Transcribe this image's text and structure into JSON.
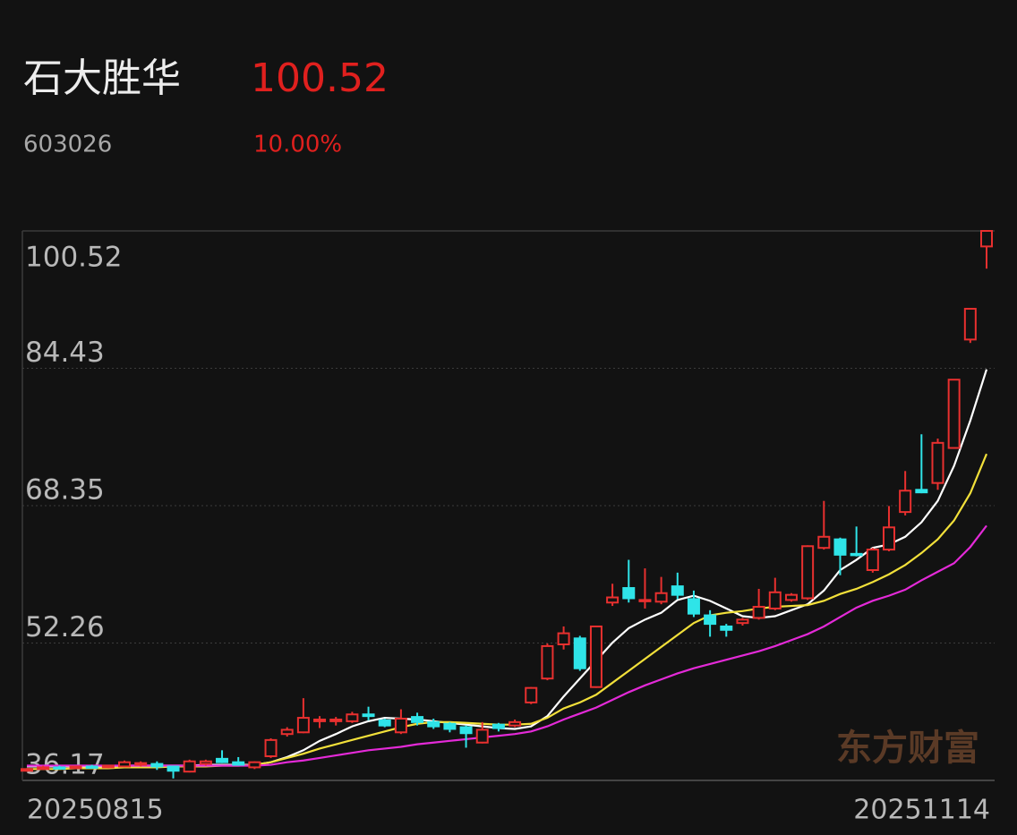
{
  "header": {
    "name": "石大胜华",
    "price": "100.52",
    "code": "603026",
    "change": "10.00%"
  },
  "chart_data": {
    "type": "candlestick",
    "categories": [
      "20250815",
      null,
      null,
      null,
      null,
      null,
      null,
      null,
      null,
      null,
      null,
      null,
      null,
      null,
      null,
      null,
      null,
      null,
      null,
      null,
      null,
      null,
      null,
      null,
      null,
      null,
      null,
      null,
      null,
      null,
      null,
      null,
      null,
      null,
      null,
      null,
      null,
      null,
      null,
      null,
      null,
      null,
      null,
      null,
      null,
      null,
      null,
      null,
      null,
      null,
      null,
      null,
      null,
      null,
      null,
      null,
      null,
      null,
      null,
      "20251114"
    ],
    "open": [
      37.3,
      37.5,
      37.7,
      37.6,
      37.8,
      37.7,
      37.8,
      38.0,
      38.1,
      37.8,
      37.2,
      38.1,
      38.7,
      38.3,
      37.7,
      39.0,
      41.6,
      41.8,
      43.1,
      43.1,
      43.1,
      43.9,
      43.2,
      41.8,
      43.6,
      43.0,
      42.8,
      42.4,
      40.6,
      42.7,
      42.6,
      45.3,
      48.1,
      52.1,
      52.8,
      47.1,
      57.0,
      58.7,
      57.2,
      57.1,
      58.9,
      57.4,
      55.5,
      54.2,
      54.6,
      55.2,
      56.3,
      57.3,
      57.5,
      63.4,
      64.4,
      62.7,
      60.8,
      63.2,
      67.6,
      70.2,
      71.0,
      75.1,
      87.8,
      98.7
    ],
    "high": [
      37.6,
      37.9,
      37.9,
      37.9,
      38.0,
      38.0,
      38.5,
      38.4,
      38.4,
      37.9,
      38.6,
      38.6,
      39.7,
      38.9,
      38.4,
      41.1,
      42.4,
      45.8,
      43.7,
      43.6,
      44.2,
      44.8,
      43.4,
      44.5,
      44.1,
      43.4,
      43.0,
      42.6,
      43.0,
      42.9,
      43.3,
      47.1,
      52.2,
      54.2,
      53.1,
      54.2,
      59.2,
      62.0,
      61.0,
      60.0,
      60.5,
      58.4,
      56.1,
      54.5,
      55.2,
      58.6,
      59.9,
      58.1,
      63.7,
      68.9,
      64.6,
      65.9,
      63.4,
      68.3,
      72.4,
      76.7,
      76.2,
      83.1,
      91.4,
      100.52
    ],
    "low": [
      37.2,
      37.4,
      37.5,
      37.5,
      37.6,
      37.6,
      37.7,
      37.8,
      37.4,
      36.4,
      37.1,
      37.9,
      38.2,
      37.9,
      37.5,
      38.8,
      41.3,
      41.7,
      42.3,
      42.6,
      42.9,
      43.2,
      42.4,
      41.6,
      42.6,
      42.2,
      41.8,
      40.0,
      40.5,
      41.9,
      42.4,
      45.1,
      47.9,
      51.5,
      49.0,
      47.0,
      56.6,
      57.0,
      56.3,
      56.8,
      57.4,
      55.3,
      53.0,
      53.0,
      54.3,
      55.0,
      56.1,
      57.1,
      57.3,
      63.2,
      60.2,
      62.4,
      60.5,
      63.0,
      67.2,
      69.8,
      70.2,
      75.0,
      87.4,
      96.1
    ],
    "close": [
      37.5,
      37.7,
      37.6,
      37.8,
      37.7,
      37.9,
      38.3,
      38.2,
      37.8,
      37.3,
      38.4,
      38.4,
      38.3,
      38.0,
      38.3,
      40.9,
      42.1,
      43.5,
      43.3,
      43.3,
      43.9,
      43.7,
      42.6,
      43.4,
      43.0,
      42.5,
      42.2,
      41.7,
      42.1,
      42.3,
      43.0,
      47.0,
      51.9,
      53.4,
      49.3,
      54.2,
      57.6,
      57.5,
      57.3,
      58.1,
      57.9,
      55.7,
      54.5,
      53.8,
      55.0,
      56.5,
      58.2,
      57.9,
      63.6,
      64.7,
      62.6,
      62.6,
      63.2,
      65.8,
      70.1,
      69.9,
      75.7,
      83.1,
      91.4,
      100.52
    ],
    "up_color": "#e8302f",
    "down_color": "#2fe4e8",
    "series": [
      {
        "color": "#ffffff",
        "values": [
          37.8,
          37.8,
          37.8,
          37.8,
          37.8,
          37.8,
          37.9,
          37.9,
          37.9,
          37.9,
          37.9,
          38.0,
          38.0,
          38.0,
          38.0,
          38.3,
          38.9,
          39.7,
          40.8,
          41.6,
          42.5,
          43.1,
          43.5,
          43.4,
          43.3,
          43.1,
          42.9,
          42.7,
          42.5,
          42.3,
          42.2,
          42.5,
          43.7,
          46.0,
          48.1,
          50.2,
          52.3,
          54.0,
          55.0,
          55.8,
          57.3,
          57.8,
          57.2,
          56.3,
          55.4,
          55.2,
          55.4,
          56.1,
          56.8,
          58.4,
          60.8,
          62.0,
          63.4,
          63.8,
          64.7,
          66.4,
          68.9,
          73.0,
          78.3,
          84.3
        ]
      },
      {
        "color": "#f2e03a",
        "values": [
          37.5,
          37.5,
          37.5,
          37.6,
          37.6,
          37.6,
          37.7,
          37.7,
          37.7,
          37.8,
          37.8,
          37.8,
          37.9,
          37.9,
          38.0,
          38.3,
          38.8,
          39.3,
          39.9,
          40.4,
          40.9,
          41.4,
          41.9,
          42.4,
          42.8,
          43.0,
          43.0,
          42.9,
          42.8,
          42.7,
          42.7,
          42.8,
          43.5,
          44.6,
          45.3,
          46.2,
          47.6,
          49.0,
          50.4,
          51.8,
          53.2,
          54.6,
          55.5,
          55.8,
          56.0,
          56.3,
          56.5,
          56.6,
          56.7,
          57.2,
          58.0,
          58.6,
          59.4,
          60.3,
          61.4,
          62.8,
          64.4,
          66.6,
          69.8,
          74.4
        ]
      },
      {
        "color": "#e42ad8",
        "values": [
          37.9,
          37.9,
          37.9,
          37.9,
          37.9,
          37.9,
          37.9,
          37.9,
          37.9,
          37.9,
          37.9,
          37.9,
          37.9,
          37.9,
          37.9,
          38.0,
          38.3,
          38.5,
          38.8,
          39.1,
          39.4,
          39.7,
          39.9,
          40.1,
          40.4,
          40.6,
          40.8,
          41.0,
          41.2,
          41.4,
          41.6,
          41.9,
          42.5,
          43.3,
          44.0,
          44.7,
          45.6,
          46.5,
          47.3,
          48.0,
          48.7,
          49.3,
          49.8,
          50.3,
          50.8,
          51.3,
          51.9,
          52.6,
          53.3,
          54.2,
          55.3,
          56.4,
          57.2,
          57.8,
          58.5,
          59.6,
          60.6,
          61.6,
          63.5,
          66.0
        ]
      }
    ],
    "ylim": [
      36.17,
      100.52
    ],
    "yticks": [
      36.17,
      52.26,
      68.35,
      84.43,
      100.52
    ],
    "grid": true,
    "watermark": "东方财富"
  }
}
